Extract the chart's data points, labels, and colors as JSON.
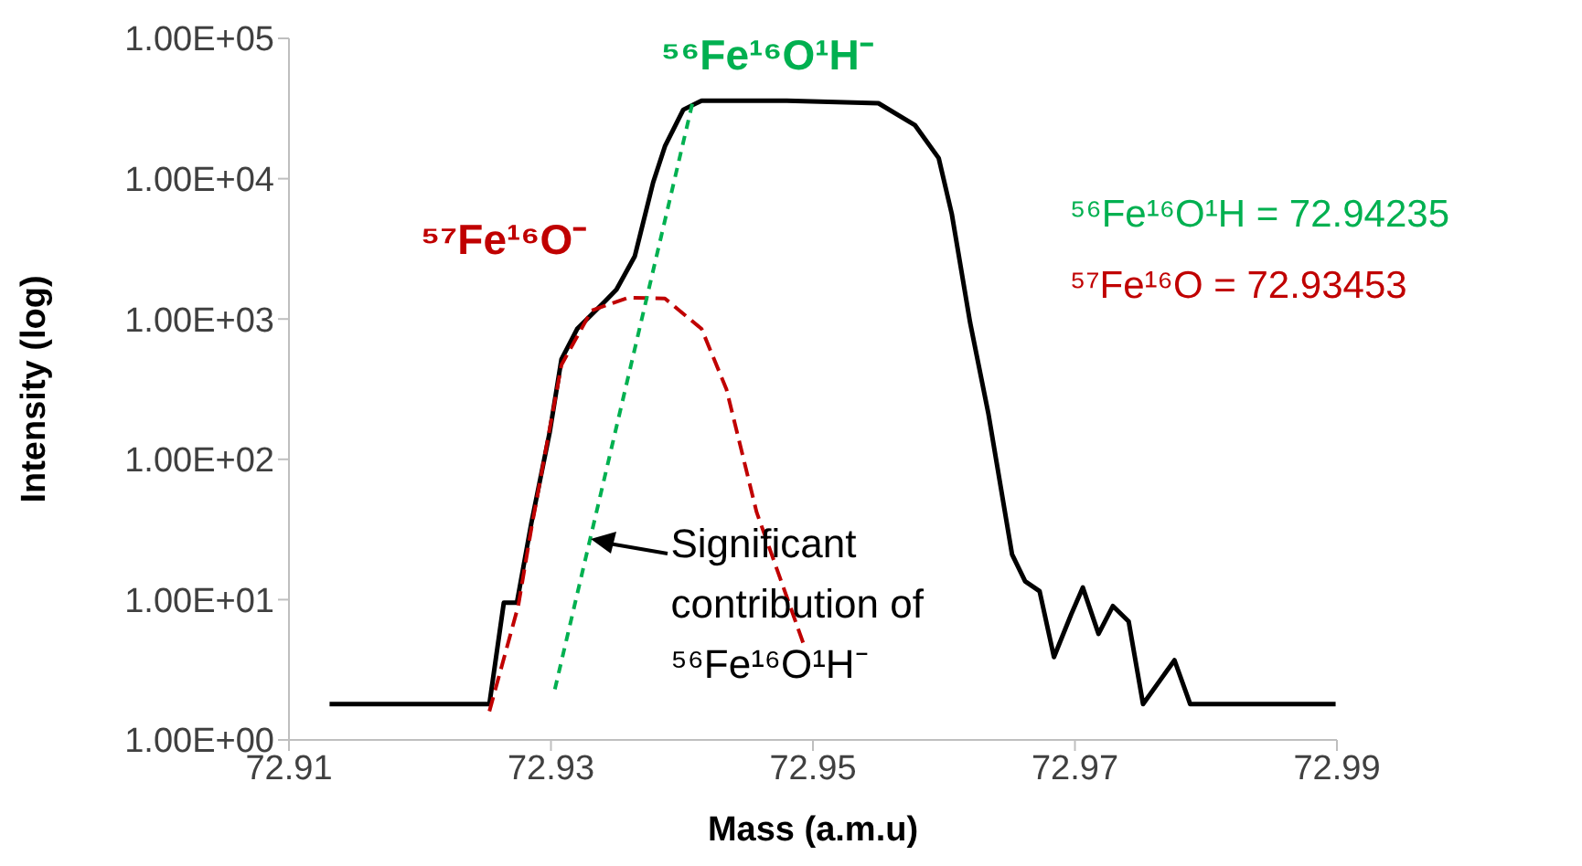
{
  "chart_data": {
    "type": "line",
    "xlabel": "Mass (a.m.u)",
    "ylabel": "Intensity (log)",
    "log": "y",
    "marker": "none",
    "grid": false,
    "legend": false,
    "xlim": [
      72.91,
      72.99
    ],
    "xticks": [
      72.91,
      72.93,
      72.95,
      72.97,
      72.99
    ],
    "ylim": [
      1,
      100000
    ],
    "yticks": [
      {
        "value": 1,
        "label": "1.00E+00"
      },
      {
        "value": 10,
        "label": "1.00E+01"
      },
      {
        "value": 100,
        "label": "1.00E+02"
      },
      {
        "value": 1000,
        "label": "1.00E+03"
      },
      {
        "value": 10000,
        "label": "1.00E+04"
      },
      {
        "value": 100000,
        "label": "1.00E+05"
      }
    ],
    "series": [
      {
        "color": "#000000",
        "line_style": "solid",
        "x": [
          72.9131,
          72.9253,
          72.9264,
          72.9274,
          72.9285,
          72.9299,
          72.9308,
          72.932,
          72.9341,
          72.935,
          72.9364,
          72.9378,
          72.9387,
          72.9401,
          72.9415,
          72.948,
          72.955,
          72.9578,
          72.9596,
          72.9606,
          72.962,
          72.9634,
          72.9652,
          72.9662,
          72.9673,
          72.9684,
          72.9697,
          72.9706,
          72.9718,
          72.9729,
          72.9741,
          72.9752,
          72.9776,
          72.9788,
          72.9799,
          72.9899
        ],
        "values": [
          1.8,
          1.8,
          9.5,
          9.5,
          35,
          155,
          515,
          850,
          1330,
          1620,
          2800,
          9400,
          17000,
          31000,
          36000,
          36000,
          34500,
          24000,
          14000,
          5600,
          940,
          210,
          21,
          13.5,
          11.5,
          3.9,
          7.8,
          12.2,
          5.7,
          9,
          7,
          1.8,
          3.7,
          1.8,
          1.8,
          1.8
        ]
      },
      {
        "name": "⁵⁷Fe¹⁶O⁻",
        "color": "#c00000",
        "line_style": "dashed",
        "x": [
          72.9253,
          72.9275,
          72.9285,
          72.9308,
          72.9331,
          72.9359,
          72.9387,
          72.9415,
          72.9434,
          72.9457,
          72.9494
        ],
        "values": [
          1.6,
          9,
          32,
          470,
          1150,
          1420,
          1400,
          850,
          315,
          42,
          4.5
        ]
      },
      {
        "name": "⁵⁶Fe¹⁶O¹H⁻",
        "color": "#00b050",
        "line_style": "dotted",
        "x": [
          72.9303,
          72.9408
        ],
        "values": [
          2.3,
          34500
        ]
      }
    ],
    "annotations": [
      "⁵⁶Fe¹⁶O¹H = 72.94235",
      "⁵⁷Fe¹⁶O = 72.93453",
      {
        "text": "Significant contribution of ⁵⁶Fe¹⁶O¹H⁻",
        "x": 72.933,
        "y": 27
      }
    ]
  }
}
